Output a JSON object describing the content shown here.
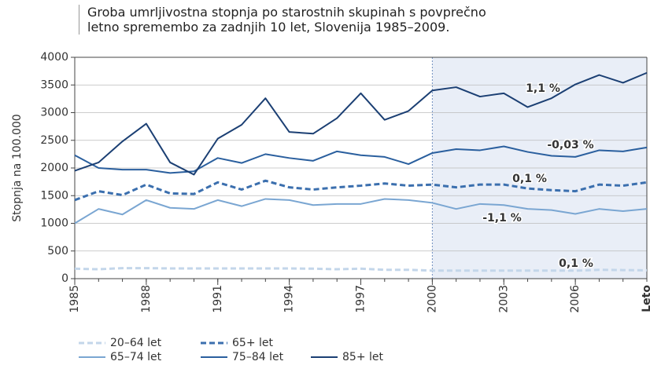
{
  "chart_data": {
    "type": "line",
    "title": "Groba umrljivostna stopnja po starostnih skupinah s povprečno letno spremembo za zadnjih 10 let, Slovenija 1985–2009.",
    "y_label": "Stopnja na 100.000",
    "x_label": "Leto",
    "x": [
      1985,
      1986,
      1987,
      1988,
      1989,
      1990,
      1991,
      1992,
      1993,
      1994,
      1995,
      1996,
      1997,
      1998,
      1999,
      2000,
      2001,
      2002,
      2003,
      2004,
      2005,
      2006,
      2007,
      2008,
      2009
    ],
    "xlim": [
      1985,
      2009
    ],
    "xticks": [
      1985,
      1988,
      1991,
      1994,
      1997,
      2000,
      2003,
      2006
    ],
    "ylim": [
      0,
      4000
    ],
    "yticks": [
      0,
      500,
      1000,
      1500,
      2000,
      2500,
      3000,
      3500,
      4000
    ],
    "grid": true,
    "shade": [
      2000,
      2009
    ],
    "legend": "bottom",
    "series": [
      {
        "name": "20–64 let",
        "color": "#c3d6ea",
        "dash": true,
        "values": [
          180,
          170,
          190,
          190,
          185,
          185,
          185,
          185,
          185,
          185,
          180,
          170,
          180,
          160,
          160,
          145,
          145,
          145,
          145,
          145,
          145,
          145,
          160,
          155,
          150
        ]
      },
      {
        "name": "65+ let",
        "color": "#3b6fae",
        "dash": true,
        "values": [
          1420,
          1580,
          1510,
          1700,
          1540,
          1530,
          1740,
          1610,
          1770,
          1650,
          1610,
          1650,
          1680,
          1720,
          1680,
          1700,
          1650,
          1700,
          1700,
          1630,
          1600,
          1580,
          1700,
          1680,
          1740
        ]
      },
      {
        "name": "65–74 let",
        "color": "#7aa6d2",
        "dash": false,
        "values": [
          1000,
          1260,
          1160,
          1420,
          1280,
          1260,
          1420,
          1310,
          1440,
          1420,
          1330,
          1350,
          1350,
          1440,
          1420,
          1370,
          1260,
          1350,
          1330,
          1260,
          1240,
          1170,
          1260,
          1220,
          1260
        ]
      },
      {
        "name": "75–84 let",
        "color": "#2a5f9e",
        "dash": false,
        "values": [
          2230,
          2000,
          1970,
          1970,
          1910,
          1940,
          2180,
          2090,
          2250,
          2180,
          2130,
          2300,
          2230,
          2200,
          2070,
          2270,
          2340,
          2320,
          2390,
          2290,
          2220,
          2200,
          2320,
          2300,
          2370
        ]
      },
      {
        "name": "85+ let",
        "color": "#1b3f73",
        "dash": false,
        "values": [
          1950,
          2100,
          2480,
          2800,
          2100,
          1880,
          2530,
          2780,
          3260,
          2650,
          2620,
          2900,
          3350,
          2870,
          3030,
          3400,
          3460,
          3290,
          3350,
          3100,
          3260,
          3510,
          3680,
          3540,
          3720
        ]
      }
    ],
    "annotations": [
      {
        "text": "1,1 %",
        "series": 4
      },
      {
        "text": "-0,03 %",
        "series": 3
      },
      {
        "text": "0,1 %",
        "series": 1
      },
      {
        "text": "-1,1 %",
        "series": 2
      },
      {
        "text": "0,1 %",
        "series": 0
      }
    ]
  }
}
